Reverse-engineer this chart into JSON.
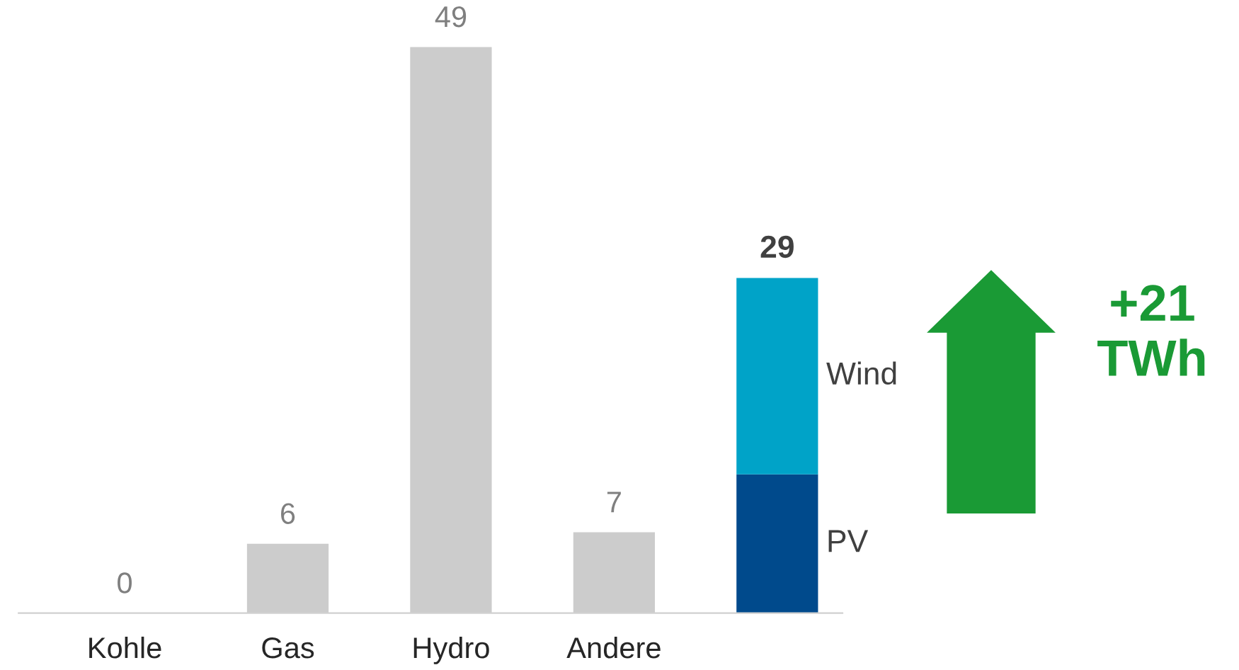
{
  "chart_data": {
    "type": "bar",
    "stacked": true,
    "categories": [
      "Kohle",
      "Gas",
      "Hydro",
      "Andere",
      null
    ],
    "series": [
      {
        "color": "#cccccc",
        "values": [
          0,
          6,
          49,
          7,
          null
        ],
        "value_labels": [
          "0",
          "6",
          "49",
          "7",
          null
        ]
      },
      {
        "name": "PV",
        "color": "#004a8c",
        "values": [
          null,
          null,
          null,
          null,
          12
        ]
      },
      {
        "name": "Wind",
        "color": "#00a3c8",
        "values": [
          null,
          null,
          null,
          null,
          17
        ]
      }
    ],
    "totals": [
      null,
      null,
      null,
      null,
      "29"
    ],
    "annotations": [
      "+21\nTWh"
    ],
    "grid": false,
    "legend": false
  }
}
